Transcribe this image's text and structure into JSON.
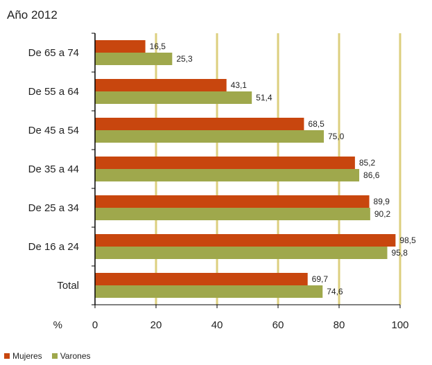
{
  "chart_data": {
    "type": "bar",
    "orientation": "horizontal",
    "title": "Año 2012",
    "x_unit_label": "%",
    "categories": [
      "De 65 a 74",
      "De 55 a 64",
      "De 45 a 54",
      "De 35 a 44",
      "De 25 a 34",
      "De 16 a 24",
      "Total"
    ],
    "series": [
      {
        "name": "Mujeres",
        "color": "#c8460e",
        "values": [
          16.5,
          43.1,
          68.5,
          85.2,
          89.9,
          98.5,
          69.7
        ],
        "labels": [
          "16,5",
          "43,1",
          "68,5",
          "85,2",
          "89,9",
          "98,5",
          "69,7"
        ]
      },
      {
        "name": "Varones",
        "color": "#9fa84c",
        "values": [
          25.3,
          51.4,
          75.0,
          86.6,
          90.2,
          95.8,
          74.6
        ],
        "labels": [
          "25,3",
          "51,4",
          "75,0",
          "86,6",
          "90,2",
          "95,8",
          "74,6"
        ]
      }
    ],
    "xlim": [
      0,
      100
    ],
    "xticks": [
      "0",
      "20",
      "40",
      "60",
      "80",
      "100"
    ],
    "gridline_color": "#dccf7e",
    "grid": true,
    "legend_position": "bottom-left"
  }
}
